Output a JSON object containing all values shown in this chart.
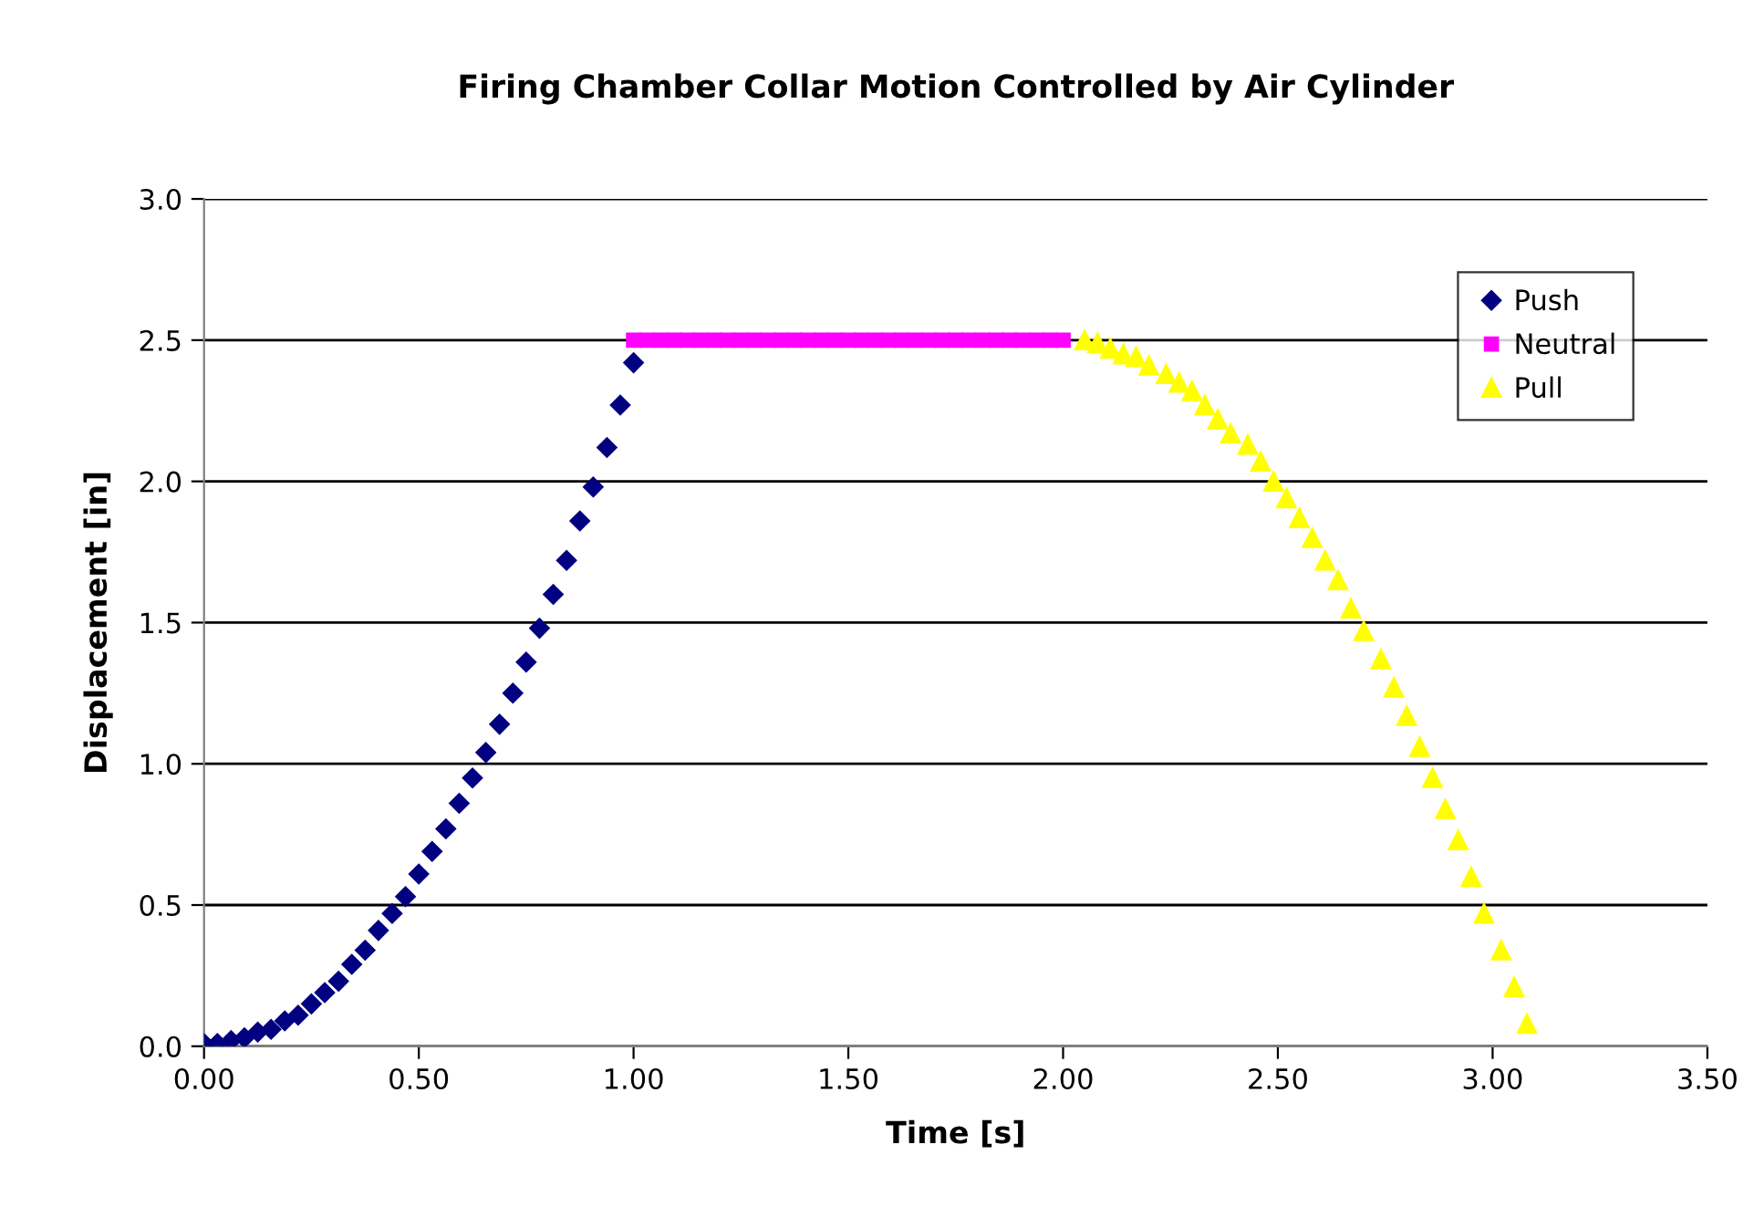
{
  "chart_data": {
    "type": "scatter",
    "title": "Firing Chamber Collar Motion Controlled by Air Cylinder",
    "xlabel": "Time [s]",
    "ylabel": "Displacement [in]",
    "xlim": [
      0,
      3.5
    ],
    "ylim": [
      0,
      3.0
    ],
    "xticks": [
      {
        "value": 0,
        "label": "0.00"
      },
      {
        "value": 0.5,
        "label": "0.50"
      },
      {
        "value": 1,
        "label": "1.00"
      },
      {
        "value": 1.5,
        "label": "1.50"
      },
      {
        "value": 2,
        "label": "2.00"
      },
      {
        "value": 2.5,
        "label": "2.50"
      },
      {
        "value": 3,
        "label": "3.00"
      },
      {
        "value": 3.5,
        "label": "3.50"
      }
    ],
    "yticks": [
      {
        "value": 0,
        "label": "0.0"
      },
      {
        "value": 0.5,
        "label": "0.5"
      },
      {
        "value": 1,
        "label": "1.0"
      },
      {
        "value": 1.5,
        "label": "1.5"
      },
      {
        "value": 2,
        "label": "2.0"
      },
      {
        "value": 2.5,
        "label": "2.5"
      },
      {
        "value": 3,
        "label": "3.0"
      }
    ],
    "grid": "y",
    "legend": "top right",
    "series": [
      {
        "name": "Push",
        "color": "#000080",
        "marker": "diamond",
        "x": [
          0,
          0.031,
          0.063,
          0.094,
          0.125,
          0.156,
          0.188,
          0.219,
          0.25,
          0.281,
          0.313,
          0.344,
          0.375,
          0.406,
          0.438,
          0.469,
          0.5,
          0.531,
          0.563,
          0.594,
          0.625,
          0.656,
          0.688,
          0.719,
          0.75,
          0.781,
          0.813,
          0.844,
          0.875,
          0.906,
          0.938,
          0.969,
          1.0
        ],
        "values": [
          0.01,
          0.01,
          0.02,
          0.03,
          0.05,
          0.06,
          0.09,
          0.11,
          0.15,
          0.19,
          0.23,
          0.29,
          0.34,
          0.41,
          0.47,
          0.53,
          0.61,
          0.69,
          0.77,
          0.86,
          0.95,
          1.04,
          1.14,
          1.25,
          1.36,
          1.48,
          1.6,
          1.72,
          1.86,
          1.98,
          2.12,
          2.27,
          2.42
        ]
      },
      {
        "name": "Neutral",
        "color": "#ff00ff",
        "marker": "square",
        "x": [
          1.0,
          1.031,
          1.063,
          1.094,
          1.125,
          1.156,
          1.188,
          1.219,
          1.25,
          1.281,
          1.313,
          1.344,
          1.375,
          1.406,
          1.438,
          1.469,
          1.5,
          1.531,
          1.563,
          1.594,
          1.625,
          1.656,
          1.688,
          1.719,
          1.75,
          1.781,
          1.813,
          1.844,
          1.875,
          1.906,
          1.938,
          1.969,
          2.0
        ],
        "values": [
          2.5,
          2.5,
          2.5,
          2.5,
          2.5,
          2.5,
          2.5,
          2.5,
          2.5,
          2.5,
          2.5,
          2.5,
          2.5,
          2.5,
          2.5,
          2.5,
          2.5,
          2.5,
          2.5,
          2.5,
          2.5,
          2.5,
          2.5,
          2.5,
          2.5,
          2.5,
          2.5,
          2.5,
          2.5,
          2.5,
          2.5,
          2.5,
          2.5
        ]
      },
      {
        "name": "Pull",
        "color": "#ffff00",
        "marker": "triangle",
        "x": [
          2.05,
          2.08,
          2.11,
          2.14,
          2.17,
          2.2,
          2.24,
          2.27,
          2.3,
          2.33,
          2.36,
          2.39,
          2.43,
          2.46,
          2.49,
          2.52,
          2.55,
          2.58,
          2.61,
          2.64,
          2.67,
          2.7,
          2.74,
          2.77,
          2.8,
          2.83,
          2.86,
          2.89,
          2.92,
          2.95,
          2.98,
          3.02,
          3.05,
          3.08
        ],
        "values": [
          2.5,
          2.49,
          2.47,
          2.45,
          2.44,
          2.41,
          2.38,
          2.35,
          2.32,
          2.27,
          2.22,
          2.17,
          2.13,
          2.07,
          2.0,
          1.94,
          1.87,
          1.8,
          1.72,
          1.65,
          1.55,
          1.47,
          1.37,
          1.27,
          1.17,
          1.06,
          0.95,
          0.84,
          0.73,
          0.6,
          0.47,
          0.34,
          0.21,
          0.08
        ]
      }
    ]
  }
}
